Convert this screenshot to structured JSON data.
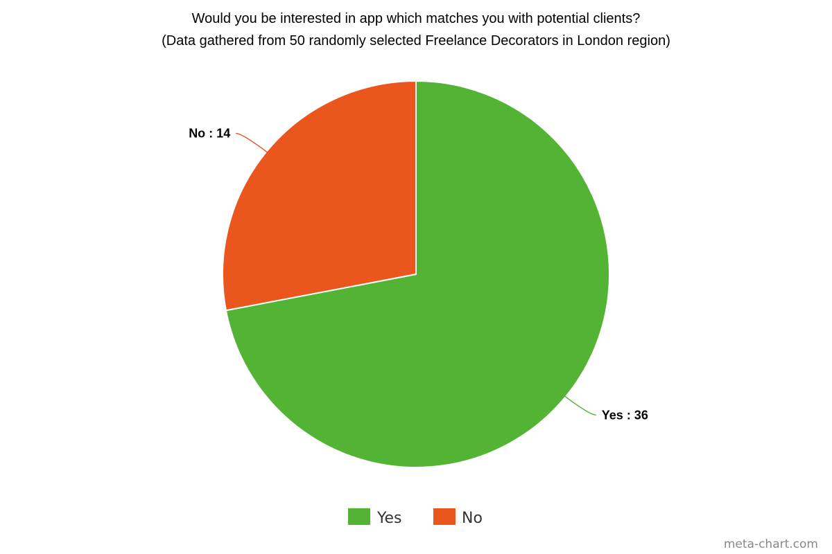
{
  "chart_data": {
    "type": "pie",
    "title": "Would you be interested in app which matches you with potential clients?",
    "subtitle": "(Data gathered from 50 randomly selected Freelance Decorators in London region)",
    "categories": [
      "Yes",
      "No"
    ],
    "values": [
      36,
      14
    ],
    "colors": [
      "#52b334",
      "#eb561e"
    ],
    "labels": [
      "Yes : 36",
      "No : 14"
    ],
    "legend": {
      "position": "bottom-center",
      "items": [
        "Yes",
        "No"
      ]
    }
  },
  "watermark": "meta-chart.com"
}
